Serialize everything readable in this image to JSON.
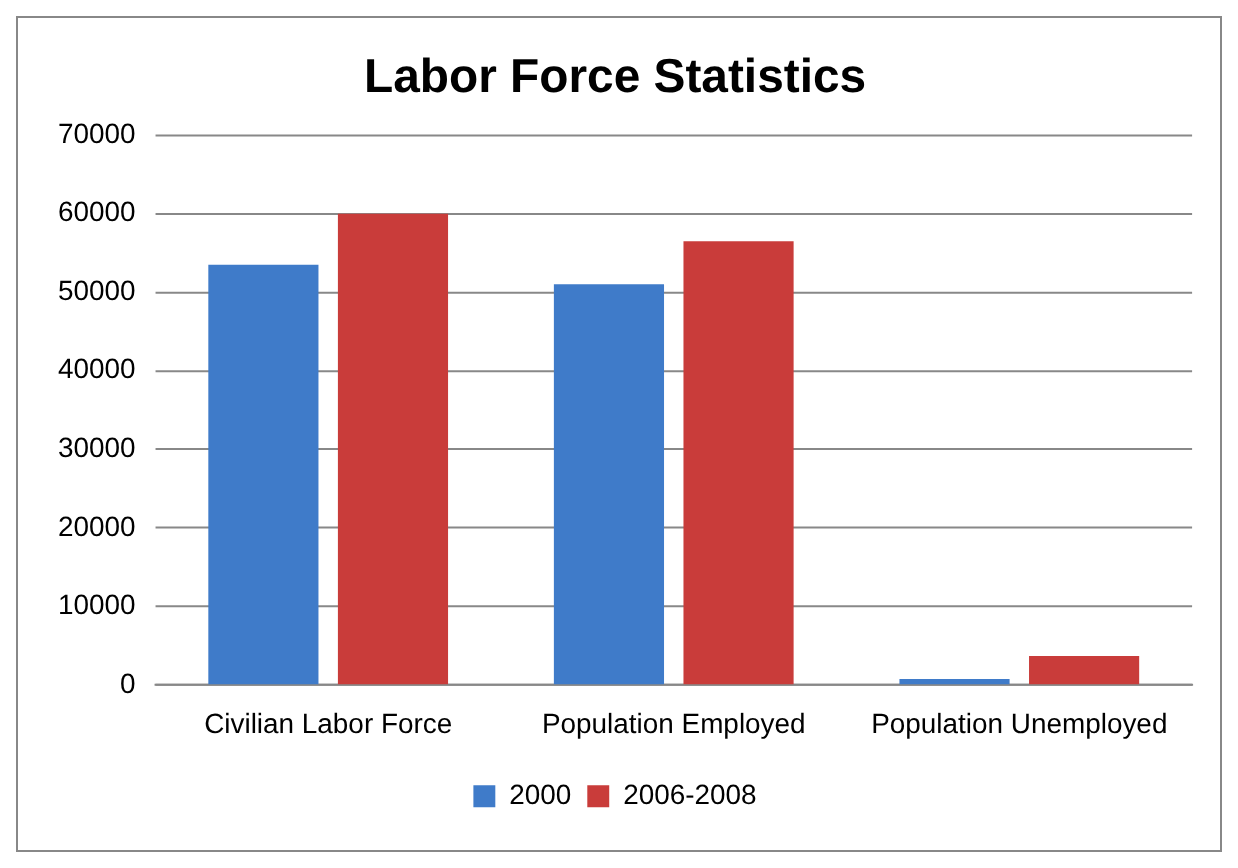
{
  "chart_data": {
    "type": "bar",
    "title": "Labor Force Statistics",
    "categories": [
      "Civilian Labor Force",
      "Population Employed",
      "Population Unemployed"
    ],
    "series": [
      {
        "name": "2000",
        "color": "#3f7bc9",
        "values": [
          53500,
          51000,
          800
        ]
      },
      {
        "name": "2006-2008",
        "color": "#c93c3a",
        "values": [
          60000,
          56500,
          3700
        ]
      }
    ],
    "ylim": [
      0,
      70000
    ],
    "yticks": [
      0,
      10000,
      20000,
      30000,
      40000,
      50000,
      60000,
      70000
    ],
    "grid": "y",
    "legend": "bottom"
  }
}
